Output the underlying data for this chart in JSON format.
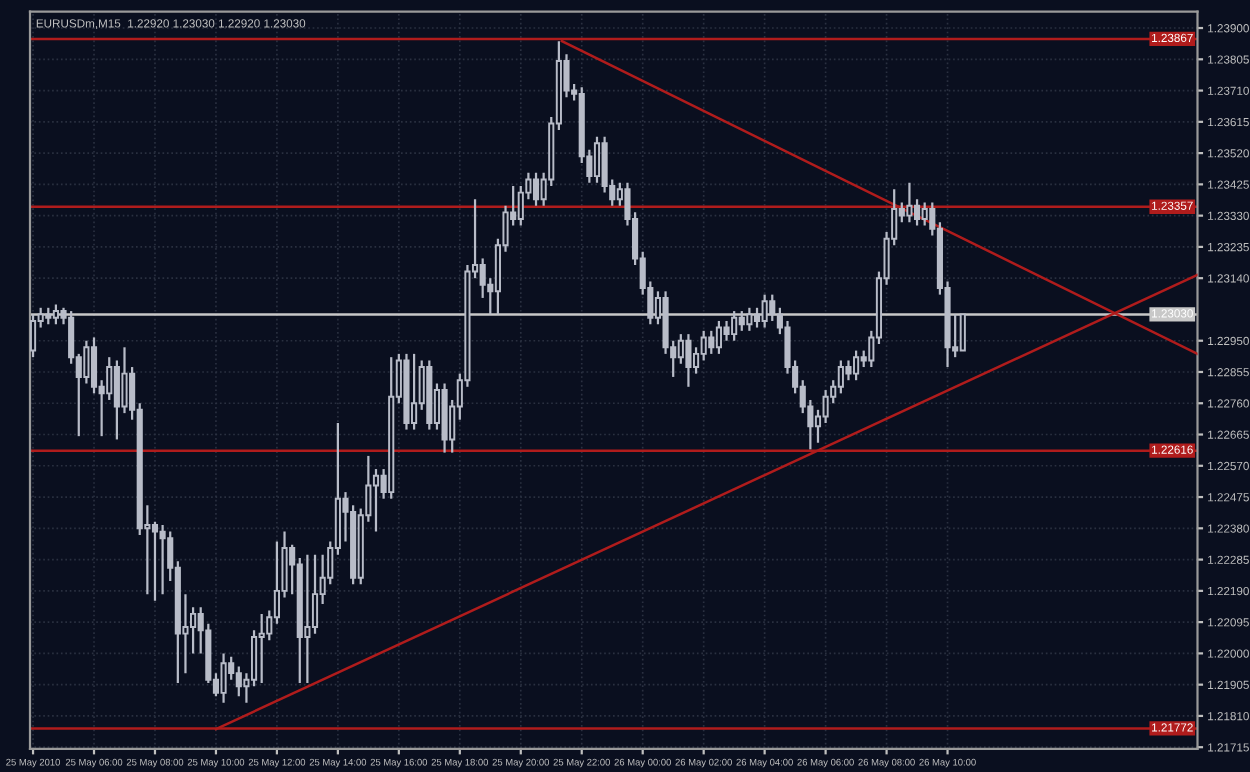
{
  "chart_data": {
    "type": "candlestick",
    "title": "EURUSDm,M15  1.22920 1.23030 1.22920 1.23030",
    "color": "#b8bcc8",
    "grid": true,
    "x": [
      "2010-05-25T04:00",
      "2010-05-25T04:15",
      "2010-05-25T04:30",
      "2010-05-25T04:45",
      "2010-05-25T05:00",
      "2010-05-25T05:15",
      "2010-05-25T05:30",
      "2010-05-25T05:45",
      "2010-05-25T06:00",
      "2010-05-25T06:15",
      "2010-05-25T06:30",
      "2010-05-25T06:45",
      "2010-05-25T07:00",
      "2010-05-25T07:15",
      "2010-05-25T07:30",
      "2010-05-25T07:45",
      "2010-05-25T08:00",
      "2010-05-25T08:15",
      "2010-05-25T08:30",
      "2010-05-25T08:45",
      "2010-05-25T09:00",
      "2010-05-25T09:15",
      "2010-05-25T09:30",
      "2010-05-25T09:45",
      "2010-05-25T10:00",
      "2010-05-25T10:15",
      "2010-05-25T10:30",
      "2010-05-25T10:45",
      "2010-05-25T11:00",
      "2010-05-25T11:15",
      "2010-05-25T11:30",
      "2010-05-25T11:45",
      "2010-05-25T12:00",
      "2010-05-25T12:15",
      "2010-05-25T12:30",
      "2010-05-25T12:45",
      "2010-05-25T13:00",
      "2010-05-25T13:15",
      "2010-05-25T13:30",
      "2010-05-25T13:45",
      "2010-05-25T14:00",
      "2010-05-25T14:15",
      "2010-05-25T14:30",
      "2010-05-25T14:45",
      "2010-05-25T15:00",
      "2010-05-25T15:15",
      "2010-05-25T15:30",
      "2010-05-25T15:45",
      "2010-05-25T16:00",
      "2010-05-25T16:15",
      "2010-05-25T16:30",
      "2010-05-25T16:45",
      "2010-05-25T17:00",
      "2010-05-25T17:15",
      "2010-05-25T17:30",
      "2010-05-25T17:45",
      "2010-05-25T18:00",
      "2010-05-25T18:15",
      "2010-05-25T18:30",
      "2010-05-25T18:45",
      "2010-05-25T19:00",
      "2010-05-25T19:15",
      "2010-05-25T19:30",
      "2010-05-25T19:45",
      "2010-05-25T20:00",
      "2010-05-25T20:15",
      "2010-05-25T20:30",
      "2010-05-25T20:45",
      "2010-05-25T21:00",
      "2010-05-25T21:15",
      "2010-05-25T21:30",
      "2010-05-25T21:45",
      "2010-05-25T22:00",
      "2010-05-25T22:15",
      "2010-05-25T22:30",
      "2010-05-25T22:45",
      "2010-05-25T23:00",
      "2010-05-25T23:15",
      "2010-05-25T23:30",
      "2010-05-25T23:45",
      "2010-05-26T00:00",
      "2010-05-26T00:15",
      "2010-05-26T00:30",
      "2010-05-26T00:45",
      "2010-05-26T01:00",
      "2010-05-26T01:15",
      "2010-05-26T01:30",
      "2010-05-26T01:45",
      "2010-05-26T02:00",
      "2010-05-26T02:15",
      "2010-05-26T02:30",
      "2010-05-26T02:45",
      "2010-05-26T03:00",
      "2010-05-26T03:15",
      "2010-05-26T03:30",
      "2010-05-26T03:45",
      "2010-05-26T04:00",
      "2010-05-26T04:15",
      "2010-05-26T04:30",
      "2010-05-26T04:45",
      "2010-05-26T05:00",
      "2010-05-26T05:15",
      "2010-05-26T05:30",
      "2010-05-26T05:45",
      "2010-05-26T06:00",
      "2010-05-26T06:15",
      "2010-05-26T06:30",
      "2010-05-26T06:45",
      "2010-05-26T07:00",
      "2010-05-26T07:15",
      "2010-05-26T07:30",
      "2010-05-26T07:45",
      "2010-05-26T08:00",
      "2010-05-26T08:15",
      "2010-05-26T08:30",
      "2010-05-26T08:45",
      "2010-05-26T09:00",
      "2010-05-26T09:15",
      "2010-05-26T09:30",
      "2010-05-26T09:45",
      "2010-05-26T10:00",
      "2010-05-26T10:15",
      "2010-05-26T10:30"
    ],
    "ohlc": [
      [
        1.2292,
        1.2303,
        1.229,
        1.2301
      ],
      [
        1.2301,
        1.2305,
        1.2299,
        1.2303
      ],
      [
        1.2303,
        1.2305,
        1.23,
        1.2302
      ],
      [
        1.2302,
        1.2306,
        1.23,
        1.2304
      ],
      [
        1.2304,
        1.2305,
        1.23,
        1.2302
      ],
      [
        1.2302,
        1.2304,
        1.2288,
        1.229
      ],
      [
        1.229,
        1.2291,
        1.2266,
        1.2284
      ],
      [
        1.2284,
        1.2295,
        1.2282,
        1.2293
      ],
      [
        1.2293,
        1.2296,
        1.2279,
        1.2281
      ],
      [
        1.2281,
        1.2283,
        1.2266,
        1.2279
      ],
      [
        1.2279,
        1.229,
        1.2277,
        1.2287
      ],
      [
        1.2287,
        1.2289,
        1.2265,
        1.2275
      ],
      [
        1.2275,
        1.2293,
        1.2273,
        1.2285
      ],
      [
        1.2285,
        1.2287,
        1.2271,
        1.2274
      ],
      [
        1.2274,
        1.2276,
        1.2236,
        1.2238
      ],
      [
        1.2238,
        1.2245,
        1.2218,
        1.2239
      ],
      [
        1.2239,
        1.224,
        1.2216,
        1.2237
      ],
      [
        1.2237,
        1.2239,
        1.2218,
        1.2235
      ],
      [
        1.2235,
        1.2237,
        1.2222,
        1.2226
      ],
      [
        1.2226,
        1.2228,
        1.2191,
        1.2206
      ],
      [
        1.2206,
        1.2218,
        1.2194,
        1.2208
      ],
      [
        1.2208,
        1.2214,
        1.22,
        1.2212
      ],
      [
        1.2212,
        1.2214,
        1.22,
        1.2207
      ],
      [
        1.2207,
        1.2209,
        1.2191,
        1.2192
      ],
      [
        1.2192,
        1.2194,
        1.2187,
        1.2188
      ],
      [
        1.2188,
        1.22,
        1.2185,
        1.2197
      ],
      [
        1.2197,
        1.2199,
        1.2192,
        1.2194
      ],
      [
        1.2194,
        1.2196,
        1.2187,
        1.219
      ],
      [
        1.219,
        1.2194,
        1.2185,
        1.2192
      ],
      [
        1.2192,
        1.2207,
        1.219,
        1.2205
      ],
      [
        1.2205,
        1.2212,
        1.2191,
        1.2206
      ],
      [
        1.2206,
        1.2213,
        1.2204,
        1.2211
      ],
      [
        1.2211,
        1.2234,
        1.2209,
        1.2219
      ],
      [
        1.2219,
        1.2237,
        1.2217,
        1.2232
      ],
      [
        1.2232,
        1.2233,
        1.2218,
        1.2227
      ],
      [
        1.2227,
        1.2229,
        1.2191,
        1.2205
      ],
      [
        1.2205,
        1.223,
        1.2191,
        1.2208
      ],
      [
        1.2208,
        1.223,
        1.2206,
        1.2218
      ],
      [
        1.2218,
        1.223,
        1.2215,
        1.2223
      ],
      [
        1.2223,
        1.2234,
        1.2221,
        1.2232
      ],
      [
        1.2232,
        1.227,
        1.223,
        1.2247
      ],
      [
        1.2247,
        1.2249,
        1.2234,
        1.2243
      ],
      [
        1.2243,
        1.2245,
        1.2221,
        1.2223
      ],
      [
        1.2223,
        1.2244,
        1.2221,
        1.2242
      ],
      [
        1.2242,
        1.226,
        1.224,
        1.2251
      ],
      [
        1.2251,
        1.2256,
        1.2237,
        1.2254
      ],
      [
        1.2254,
        1.2256,
        1.2247,
        1.2249
      ],
      [
        1.2249,
        1.229,
        1.2247,
        1.2278
      ],
      [
        1.2278,
        1.2291,
        1.2276,
        1.2289
      ],
      [
        1.2289,
        1.2291,
        1.2268,
        1.227
      ],
      [
        1.227,
        1.2291,
        1.2268,
        1.2276
      ],
      [
        1.2276,
        1.2289,
        1.2274,
        1.2287
      ],
      [
        1.2287,
        1.2289,
        1.2268,
        1.227
      ],
      [
        1.227,
        1.2282,
        1.2268,
        1.228
      ],
      [
        1.228,
        1.2282,
        1.2261,
        1.2265
      ],
      [
        1.2265,
        1.2277,
        1.2261,
        1.2275
      ],
      [
        1.2275,
        1.2285,
        1.2271,
        1.2283
      ],
      [
        1.2283,
        1.2318,
        1.2281,
        1.2316
      ],
      [
        1.2316,
        1.2338,
        1.2314,
        1.2318
      ],
      [
        1.2318,
        1.232,
        1.2308,
        1.2312
      ],
      [
        1.2312,
        1.2314,
        1.2303,
        1.231
      ],
      [
        1.231,
        1.2326,
        1.2303,
        1.2324
      ],
      [
        1.2324,
        1.2336,
        1.2322,
        1.2334
      ],
      [
        1.2334,
        1.2342,
        1.233,
        1.2332
      ],
      [
        1.2332,
        1.2342,
        1.233,
        1.234
      ],
      [
        1.234,
        1.2346,
        1.2338,
        1.2344
      ],
      [
        1.2344,
        1.2346,
        1.2336,
        1.2338
      ],
      [
        1.2338,
        1.2346,
        1.2336,
        1.2344
      ],
      [
        1.2344,
        1.2363,
        1.2342,
        1.2361
      ],
      [
        1.2361,
        1.2386,
        1.2359,
        1.238
      ],
      [
        1.238,
        1.2382,
        1.2369,
        1.2371
      ],
      [
        1.2371,
        1.2373,
        1.2368,
        1.237
      ],
      [
        1.237,
        1.2372,
        1.2349,
        1.2351
      ],
      [
        1.2351,
        1.2353,
        1.2343,
        1.2345
      ],
      [
        1.2345,
        1.2357,
        1.2343,
        1.2355
      ],
      [
        1.2355,
        1.2357,
        1.234,
        1.2342
      ],
      [
        1.2342,
        1.2344,
        1.2336,
        1.2338
      ],
      [
        1.2338,
        1.2343,
        1.2336,
        1.2341
      ],
      [
        1.2341,
        1.2343,
        1.233,
        1.2332
      ],
      [
        1.2332,
        1.2334,
        1.2318,
        1.232
      ],
      [
        1.232,
        1.2322,
        1.2309,
        1.2311
      ],
      [
        1.2311,
        1.2313,
        1.23,
        1.2302
      ],
      [
        1.2302,
        1.231,
        1.23,
        1.2308
      ],
      [
        1.2308,
        1.231,
        1.2291,
        1.2293
      ],
      [
        1.2293,
        1.2295,
        1.2284,
        1.229
      ],
      [
        1.229,
        1.2297,
        1.2288,
        1.2295
      ],
      [
        1.2295,
        1.2297,
        1.2281,
        1.2287
      ],
      [
        1.2287,
        1.2293,
        1.2285,
        1.2291
      ],
      [
        1.2291,
        1.2298,
        1.2289,
        1.2296
      ],
      [
        1.2296,
        1.2298,
        1.2291,
        1.2293
      ],
      [
        1.2293,
        1.2301,
        1.2291,
        1.2299
      ],
      [
        1.2299,
        1.2301,
        1.2295,
        1.2297
      ],
      [
        1.2297,
        1.2304,
        1.2295,
        1.2302
      ],
      [
        1.2302,
        1.2304,
        1.2298,
        1.23
      ],
      [
        1.23,
        1.2305,
        1.2298,
        1.2303
      ],
      [
        1.2303,
        1.2305,
        1.2299,
        1.2301
      ],
      [
        1.2301,
        1.2309,
        1.2299,
        1.2307
      ],
      [
        1.2307,
        1.2309,
        1.2301,
        1.2303
      ],
      [
        1.2303,
        1.2305,
        1.2297,
        1.2299
      ],
      [
        1.2299,
        1.2301,
        1.2285,
        1.2287
      ],
      [
        1.2287,
        1.2289,
        1.2279,
        1.2281
      ],
      [
        1.2281,
        1.2283,
        1.2273,
        1.2275
      ],
      [
        1.2275,
        1.2277,
        1.2262,
        1.2269
      ],
      [
        1.2269,
        1.2274,
        1.2264,
        1.2272
      ],
      [
        1.2272,
        1.228,
        1.227,
        1.2278
      ],
      [
        1.2278,
        1.2283,
        1.2276,
        1.2281
      ],
      [
        1.2281,
        1.2289,
        1.2279,
        1.2287
      ],
      [
        1.2287,
        1.2289,
        1.2283,
        1.2285
      ],
      [
        1.2285,
        1.2292,
        1.2283,
        1.229
      ],
      [
        1.229,
        1.2292,
        1.2287,
        1.2289
      ],
      [
        1.2289,
        1.2298,
        1.2287,
        1.2296
      ],
      [
        1.2296,
        1.2316,
        1.2294,
        1.2314
      ],
      [
        1.2314,
        1.2328,
        1.2312,
        1.2326
      ],
      [
        1.2326,
        1.2341,
        1.2324,
        1.2335
      ],
      [
        1.2335,
        1.2337,
        1.2331,
        1.2333
      ],
      [
        1.2333,
        1.2343,
        1.2331,
        1.2336
      ],
      [
        1.2336,
        1.2338,
        1.233,
        1.2332
      ],
      [
        1.2332,
        1.2337,
        1.233,
        1.2335
      ],
      [
        1.2335,
        1.2337,
        1.2327,
        1.2329
      ],
      [
        1.2329,
        1.2331,
        1.2309,
        1.2311
      ],
      [
        1.2311,
        1.2313,
        1.2287,
        1.2293
      ],
      [
        1.2293,
        1.2303,
        1.229,
        1.2292
      ],
      [
        1.2292,
        1.2303,
        1.2292,
        1.2303
      ]
    ],
    "series": [
      {
        "type": "line",
        "color": "#b01c1c",
        "x": [
          "2010-05-25T21:21",
          "2010-05-26T18:12"
        ],
        "values": [
          1.2386,
          1.2291
        ]
      },
      {
        "type": "line",
        "color": "#b01c1c",
        "x": [
          "2010-05-25T10:00",
          "2010-05-26T18:12"
        ],
        "values": [
          1.2177,
          1.2315
        ]
      }
    ],
    "ref_lines": [
      {
        "axis": "y",
        "value": 1.23867,
        "label": "1.23867",
        "color": "#b01c1c"
      },
      {
        "axis": "y",
        "value": 1.23357,
        "label": "1.23357",
        "color": "#b01c1c"
      },
      {
        "axis": "y",
        "value": 1.2303,
        "label": "1.23030",
        "color": "#c8c8c8"
      },
      {
        "axis": "y",
        "value": 1.22616,
        "label": "1.22616",
        "color": "#b01c1c"
      },
      {
        "axis": "y",
        "value": 1.21772,
        "label": "1.21772",
        "color": "#b01c1c"
      }
    ],
    "xlim": [
      "2010-05-25T03:54",
      "2010-05-26T18:12"
    ],
    "ylim": [
      1.2171,
      1.2395
    ],
    "xticks": [
      {
        "value": "2010-05-25T04:00",
        "label": "25 May 2010"
      },
      {
        "value": "2010-05-25T06:00",
        "label": "25 May 06:00"
      },
      {
        "value": "2010-05-25T08:00",
        "label": "25 May 08:00"
      },
      {
        "value": "2010-05-25T10:00",
        "label": "25 May 10:00"
      },
      {
        "value": "2010-05-25T12:00",
        "label": "25 May 12:00"
      },
      {
        "value": "2010-05-25T14:00",
        "label": "25 May 14:00"
      },
      {
        "value": "2010-05-25T16:00",
        "label": "25 May 16:00"
      },
      {
        "value": "2010-05-25T18:00",
        "label": "25 May 18:00"
      },
      {
        "value": "2010-05-25T20:00",
        "label": "25 May 20:00"
      },
      {
        "value": "2010-05-25T22:00",
        "label": "25 May 22:00"
      },
      {
        "value": "2010-05-26T00:00",
        "label": "26 May 00:00"
      },
      {
        "value": "2010-05-26T02:00",
        "label": "26 May 02:00"
      },
      {
        "value": "2010-05-26T04:00",
        "label": "26 May 04:00"
      },
      {
        "value": "2010-05-26T06:00",
        "label": "26 May 06:00"
      },
      {
        "value": "2010-05-26T08:00",
        "label": "26 May 08:00"
      },
      {
        "value": "2010-05-26T10:00",
        "label": "26 May 10:00"
      }
    ],
    "yticks": [
      {
        "value": 1.239,
        "label": "1.23900"
      },
      {
        "value": 1.23805,
        "label": "1.23805"
      },
      {
        "value": 1.2371,
        "label": "1.23710"
      },
      {
        "value": 1.23615,
        "label": "1.23615"
      },
      {
        "value": 1.2352,
        "label": "1.23520"
      },
      {
        "value": 1.23425,
        "label": "1.23425"
      },
      {
        "value": 1.2333,
        "label": "1.23330"
      },
      {
        "value": 1.23235,
        "label": "1.23235"
      },
      {
        "value": 1.2314,
        "label": "1.23140"
      },
      {
        "value": 1.2295,
        "label": "1.22950"
      },
      {
        "value": 1.22855,
        "label": "1.22855"
      },
      {
        "value": 1.2276,
        "label": "1.22760"
      },
      {
        "value": 1.22665,
        "label": "1.22665"
      },
      {
        "value": 1.2257,
        "label": "1.22570"
      },
      {
        "value": 1.22475,
        "label": "1.22475"
      },
      {
        "value": 1.2238,
        "label": "1.22380"
      },
      {
        "value": 1.22285,
        "label": "1.22285"
      },
      {
        "value": 1.2219,
        "label": "1.22190"
      },
      {
        "value": 1.22095,
        "label": "1.22095"
      },
      {
        "value": 1.22,
        "label": "1.22000"
      },
      {
        "value": 1.21905,
        "label": "1.21905"
      },
      {
        "value": 1.2181,
        "label": "1.21810"
      },
      {
        "value": 1.21715,
        "label": "1.21715"
      }
    ]
  }
}
